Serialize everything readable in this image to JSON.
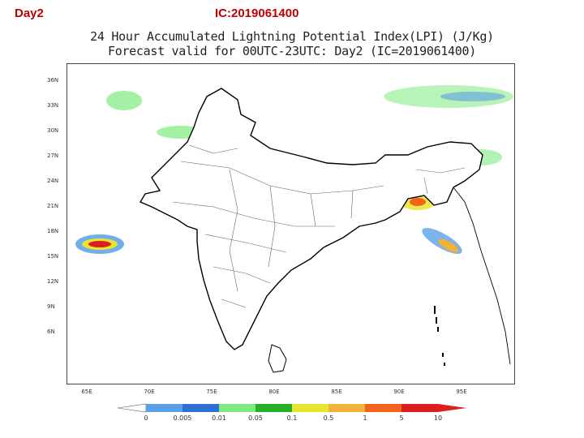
{
  "header": {
    "day_label": "Day2",
    "ic_label": "IC:2019061400"
  },
  "plot": {
    "title_line1": "24 Hour Accumulated Lightning Potential Index(LPI) (J/Kg)",
    "title_line2": "Forecast valid for 00UTC-23UTC: Day2 (IC=2019061400)"
  },
  "axes": {
    "latitudes": [
      "36N",
      "33N",
      "30N",
      "27N",
      "24N",
      "21N",
      "18N",
      "15N",
      "12N",
      "9N",
      "6N"
    ],
    "longitudes": [
      "65E",
      "70E",
      "75E",
      "80E",
      "85E",
      "90E",
      "95E"
    ]
  },
  "colorbar": {
    "labels": [
      "0",
      "0.005",
      "0.01",
      "0.05",
      "0.1",
      "0.5",
      "1",
      "5",
      "10"
    ],
    "colors": [
      "#5aa0e6",
      "#2f6fd6",
      "#7eea7e",
      "#28b028",
      "#e6e62e",
      "#f2b23a",
      "#f2641e",
      "#dc1e1e"
    ]
  },
  "legend_colors": {
    "land": "#ffffff",
    "boundary": "#000000"
  }
}
